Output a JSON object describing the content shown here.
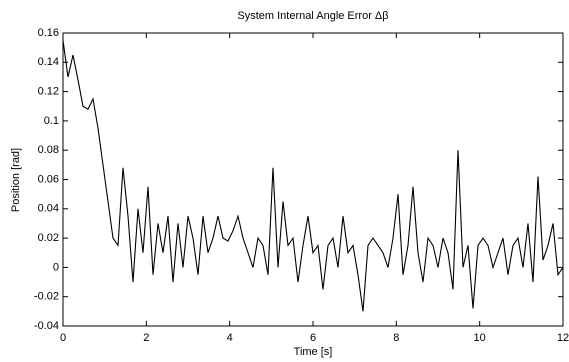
{
  "chart_data": {
    "type": "line",
    "title": "System Internal Angle Error Δβ",
    "x_label": "Time [s]",
    "y_label": "Position [rad]",
    "x": [
      0,
      0.12,
      0.24,
      0.36,
      0.48,
      0.6,
      0.72,
      0.84,
      0.96,
      1.08,
      1.2,
      1.32,
      1.44,
      1.56,
      1.68,
      1.8,
      1.92,
      2.04,
      2.16,
      2.28,
      2.4,
      2.52,
      2.64,
      2.76,
      2.88,
      3,
      3.12,
      3.24,
      3.36,
      3.48,
      3.6,
      3.72,
      3.84,
      3.96,
      4.08,
      4.2,
      4.32,
      4.44,
      4.56,
      4.68,
      4.8,
      4.92,
      5.04,
      5.16,
      5.28,
      5.4,
      5.52,
      5.64,
      5.76,
      5.88,
      6,
      6.12,
      6.24,
      6.36,
      6.48,
      6.6,
      6.72,
      6.84,
      6.96,
      7.08,
      7.2,
      7.32,
      7.44,
      7.56,
      7.68,
      7.8,
      7.92,
      8.04,
      8.16,
      8.28,
      8.4,
      8.52,
      8.64,
      8.76,
      8.88,
      9,
      9.12,
      9.24,
      9.36,
      9.48,
      9.6,
      9.72,
      9.84,
      9.96,
      10.08,
      10.2,
      10.32,
      10.44,
      10.56,
      10.68,
      10.8,
      10.92,
      11.04,
      11.16,
      11.28,
      11.4,
      11.52,
      11.64,
      11.76,
      11.88,
      12
    ],
    "series": [
      {
        "color": "#000000",
        "values": [
          0.155,
          0.13,
          0.145,
          0.128,
          0.11,
          0.108,
          0.115,
          0.095,
          0.07,
          0.045,
          0.02,
          0.015,
          0.068,
          0.035,
          -0.01,
          0.04,
          0.01,
          0.055,
          -0.005,
          0.03,
          0.01,
          0.035,
          -0.01,
          0.03,
          0,
          0.035,
          0.02,
          -0.005,
          0.035,
          0.01,
          0.02,
          0.035,
          0.02,
          0.018,
          0.025,
          0.035,
          0.02,
          0.01,
          0,
          0.02,
          0.015,
          -0.005,
          0.068,
          0,
          0.045,
          0.015,
          0.02,
          -0.01,
          0.015,
          0.035,
          0.01,
          0.015,
          -0.015,
          0.015,
          0.02,
          0,
          0.035,
          0.01,
          0.015,
          -0.005,
          -0.03,
          0.015,
          0.02,
          0.015,
          0.01,
          0,
          0.02,
          0.05,
          -0.005,
          0.015,
          0.055,
          0.01,
          -0.01,
          0.02,
          0.015,
          0,
          0.02,
          0.01,
          -0.015,
          0.08,
          0,
          0.015,
          -0.028,
          0.015,
          0.02,
          0.015,
          0,
          0.01,
          0.02,
          -0.005,
          0.015,
          0.02,
          0,
          0.03,
          -0.01,
          0.062,
          0.005,
          0.015,
          0.03,
          -0.005,
          0
        ]
      }
    ],
    "xlim": [
      0,
      12
    ],
    "xticks": [
      0,
      2,
      4,
      6,
      8,
      10,
      12
    ],
    "ylim": [
      -0.04,
      0.16
    ],
    "yticks": [
      -0.04,
      -0.02,
      0,
      0.02,
      0.04,
      0.06,
      0.08,
      0.1,
      0.12,
      0.14,
      0.16
    ]
  }
}
